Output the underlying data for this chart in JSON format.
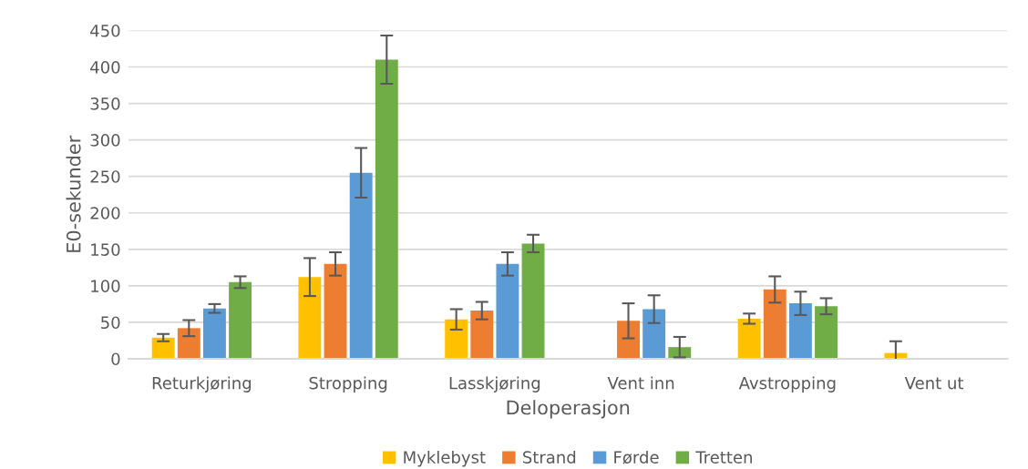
{
  "chart_data": {
    "type": "bar",
    "xlabel": "Deloperasjon",
    "ylabel": "E0-sekunder",
    "categories": [
      "Returkjøring",
      "Stropping",
      "Lasskjøring",
      "Vent inn",
      "Avstropping",
      "Vent ut"
    ],
    "series": [
      {
        "name": "Myklebyst",
        "color": "#ffc000",
        "values": [
          29,
          112,
          54,
          0,
          55,
          8
        ],
        "errors": [
          5,
          26,
          14,
          null,
          7,
          16
        ]
      },
      {
        "name": "Strand",
        "color": "#ed7d31",
        "values": [
          42,
          130,
          66,
          52,
          95,
          0
        ],
        "errors": [
          11,
          16,
          12,
          24,
          18,
          null
        ]
      },
      {
        "name": "Førde",
        "color": "#5b9bd5",
        "values": [
          69,
          255,
          130,
          68,
          76,
          0
        ],
        "errors": [
          6,
          34,
          16,
          19,
          16,
          null
        ]
      },
      {
        "name": "Tretten",
        "color": "#70ad47",
        "values": [
          105,
          410,
          158,
          16,
          72,
          0
        ],
        "errors": [
          8,
          33,
          12,
          14,
          11,
          null
        ]
      }
    ],
    "ylim": [
      0,
      450
    ],
    "yticks": [
      0,
      50,
      100,
      150,
      200,
      250,
      300,
      350,
      400,
      450
    ],
    "grid": "y",
    "legend": "bottom"
  }
}
